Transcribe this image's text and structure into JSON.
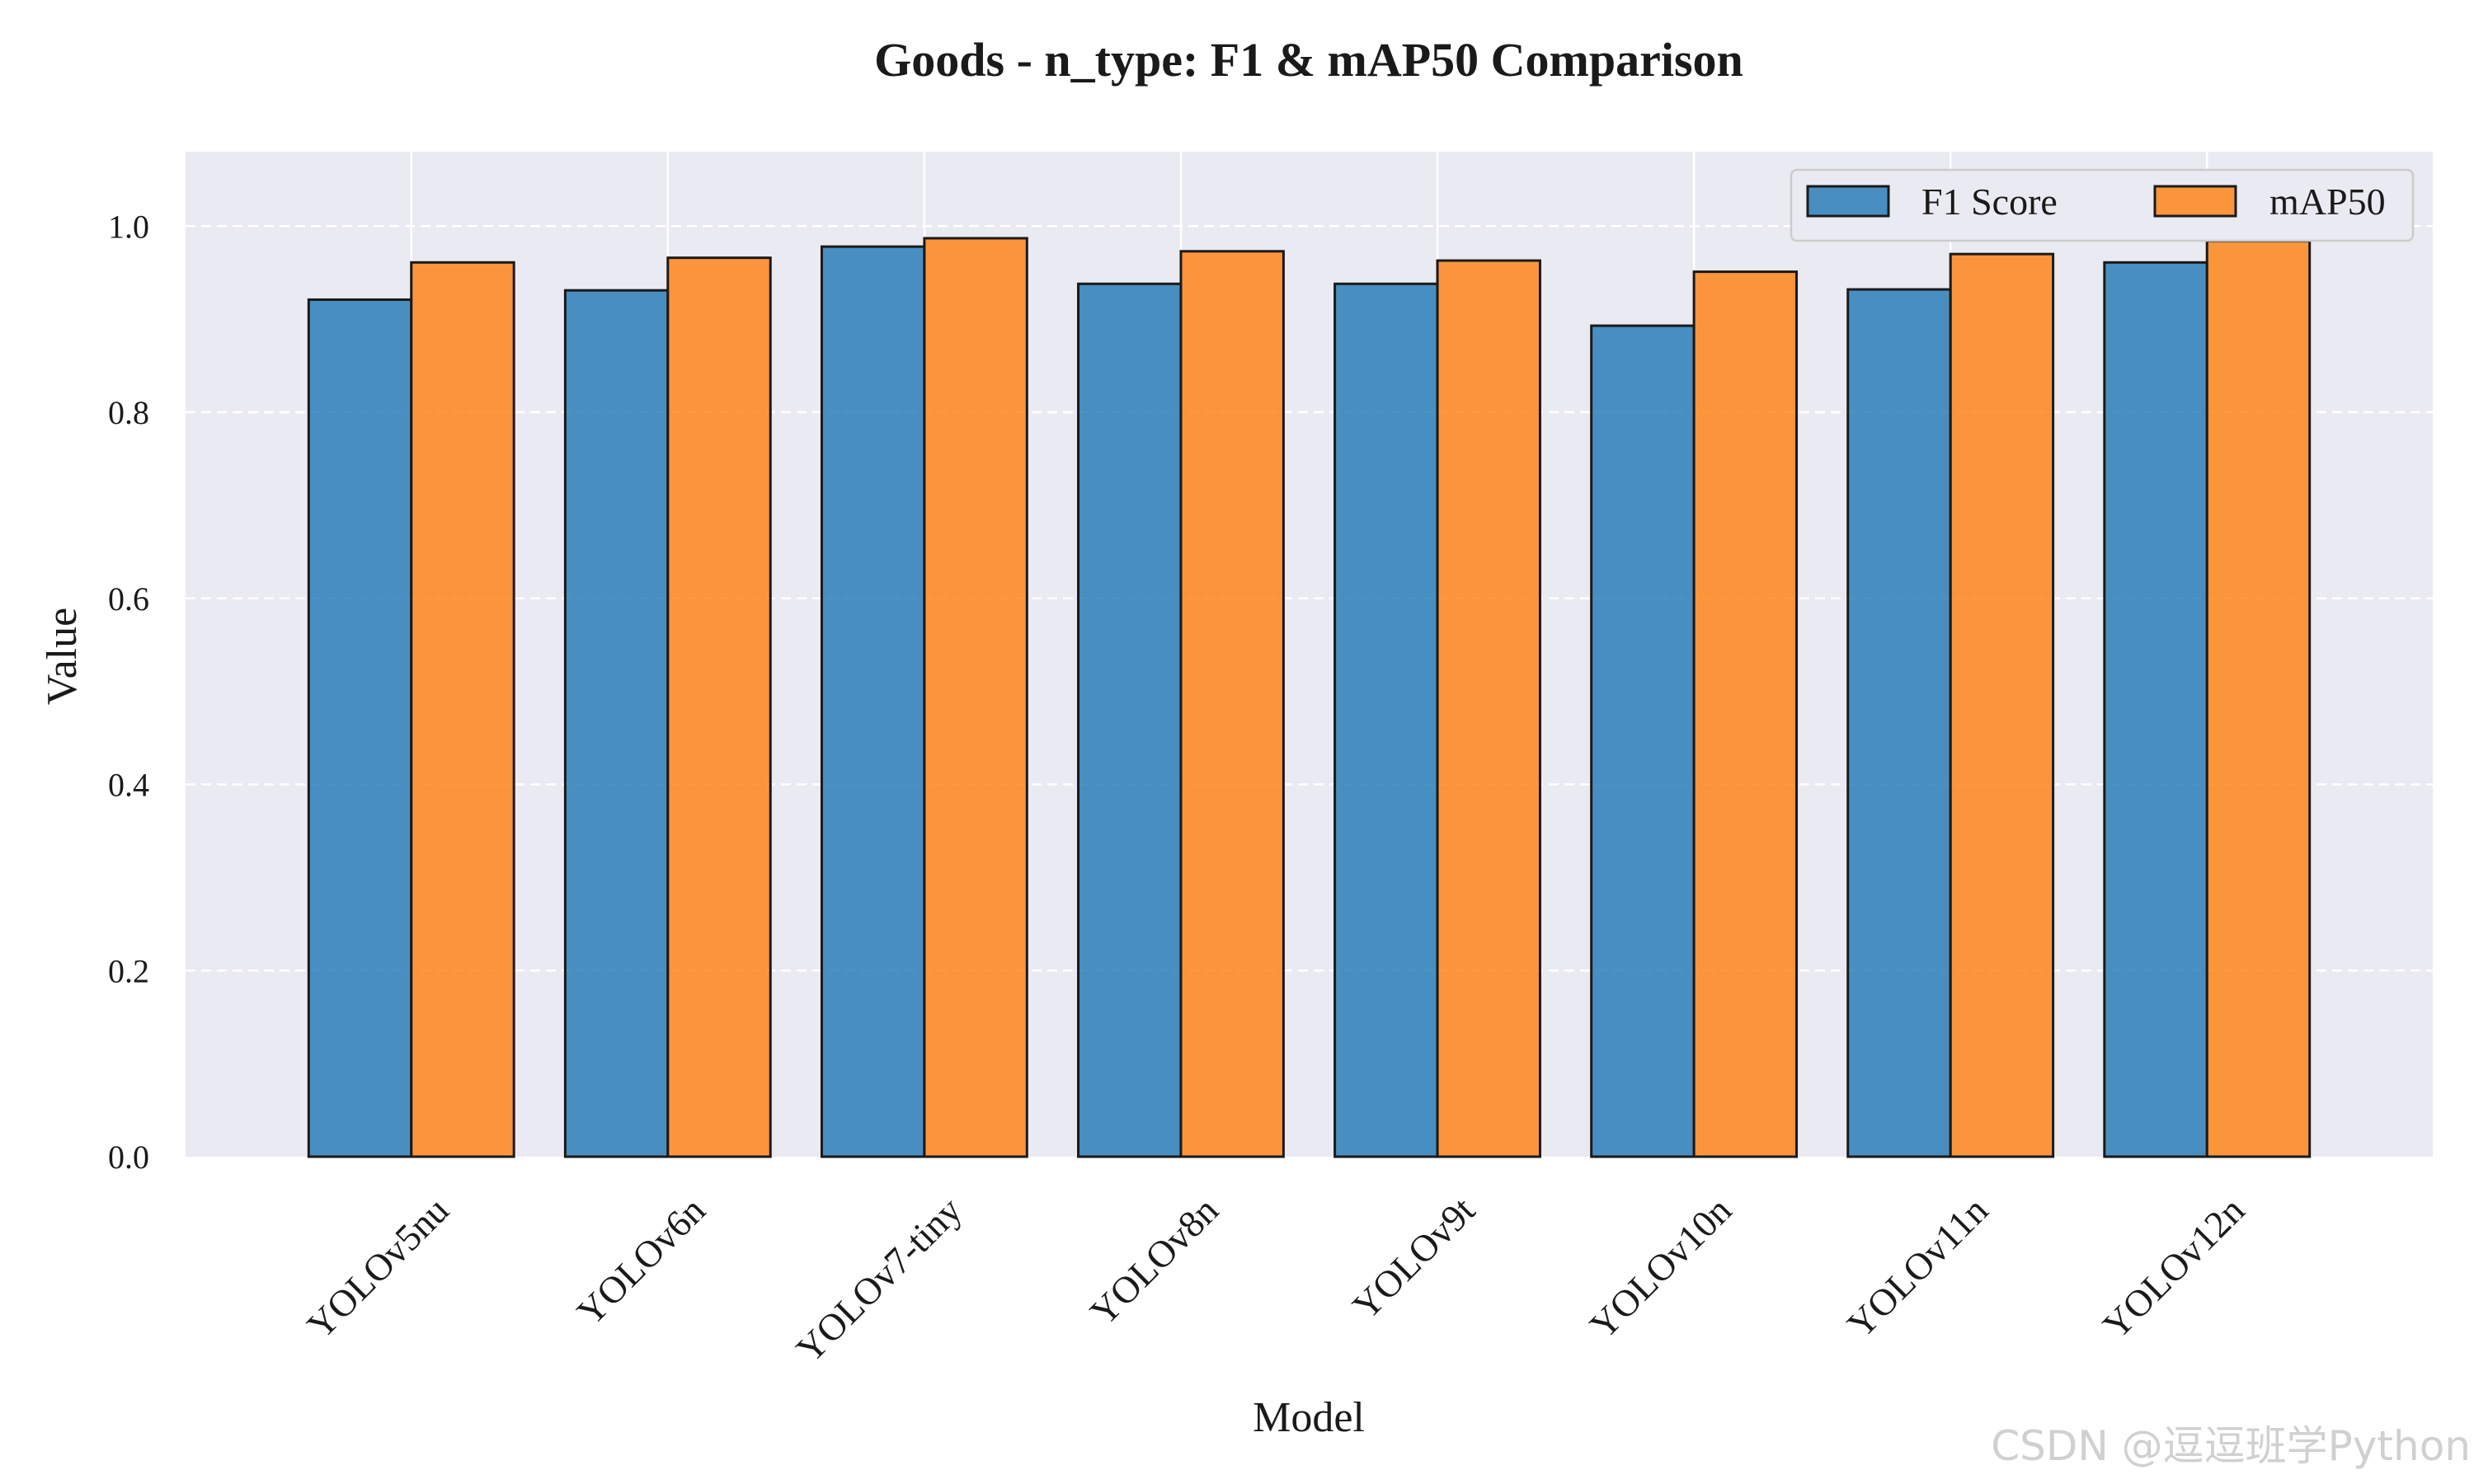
{
  "chart_data": {
    "type": "bar",
    "title": "Goods - n_type: F1 & mAP50 Comparison",
    "xlabel": "Model",
    "ylabel": "Value",
    "ylim": [
      0,
      1.08
    ],
    "yticks": [
      0.0,
      0.2,
      0.4,
      0.6,
      0.8,
      1.0
    ],
    "grid": true,
    "legend_position": "top-right",
    "categories": [
      "YOLOv5nu",
      "YOLOv6n",
      "YOLOv7-tiny",
      "YOLOv8n",
      "YOLOv9t",
      "YOLOv10n",
      "YOLOv11n",
      "YOLOv12n"
    ],
    "series": [
      {
        "name": "F1 Score",
        "color": "#1f77b4",
        "values": [
          0.921,
          0.931,
          0.978,
          0.938,
          0.938,
          0.893,
          0.932,
          0.961
        ]
      },
      {
        "name": "mAP50",
        "color": "#ff7f0e",
        "values": [
          0.961,
          0.966,
          0.987,
          0.973,
          0.963,
          0.951,
          0.97,
          0.984
        ]
      }
    ],
    "colors": {
      "plot_background": "#eaeaf2",
      "grid": "#ffffff",
      "bar_edge": "#1a1a1a"
    }
  },
  "watermark": "CSDN @逗逗班学Python"
}
